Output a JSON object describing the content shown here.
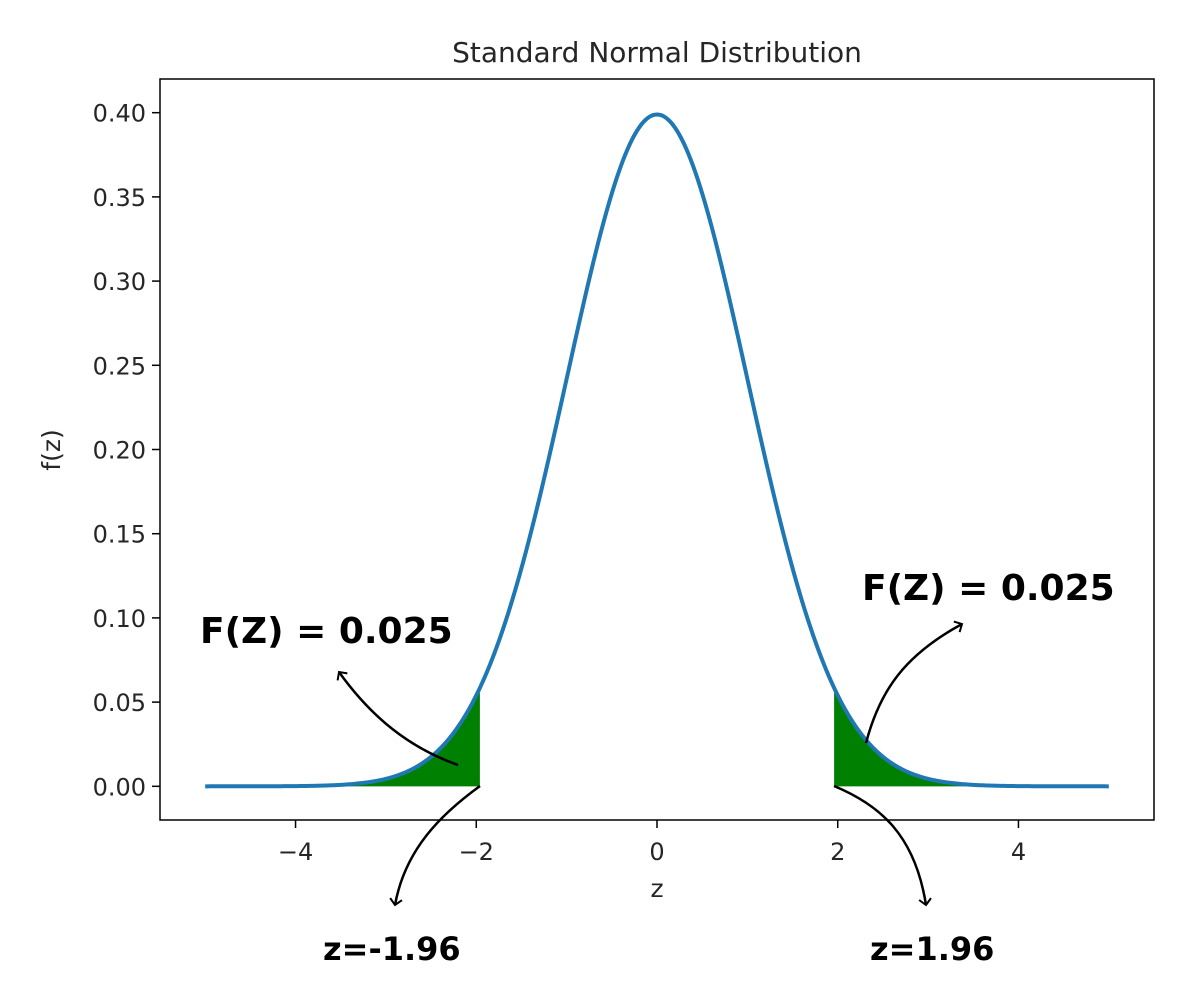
{
  "chart_data": {
    "type": "area",
    "title": "Standard Normal Distribution",
    "xlabel": "z",
    "ylabel": "f(z)",
    "xlim": [
      -5.5,
      5.5
    ],
    "ylim": [
      -0.02,
      0.42
    ],
    "x_ticks": [
      -4,
      -2,
      0,
      2,
      4
    ],
    "x_tick_labels": [
      "−4",
      "−2",
      "0",
      "2",
      "4"
    ],
    "y_ticks": [
      0.0,
      0.05,
      0.1,
      0.15,
      0.2,
      0.25,
      0.3,
      0.35,
      0.4
    ],
    "y_tick_labels": [
      "0.00",
      "0.05",
      "0.10",
      "0.15",
      "0.20",
      "0.25",
      "0.30",
      "0.35",
      "0.40"
    ],
    "grid": false,
    "series": [
      {
        "x_range": [
          -5,
          5
        ],
        "function": "standard normal pdf",
        "color": "#1f77b4"
      }
    ],
    "shaded_regions": [
      {
        "x_from": -5,
        "x_to": -1.96,
        "color": "#008000"
      },
      {
        "x_from": 1.96,
        "x_to": 5,
        "color": "#008000"
      }
    ],
    "annotations": [
      {
        "text": "F(Z) = 0.025",
        "side": "left"
      },
      {
        "text": "F(Z) = 0.025",
        "side": "right"
      },
      {
        "text": "z=-1.96",
        "side": "left"
      },
      {
        "text": "z=1.96",
        "side": "right"
      }
    ]
  }
}
